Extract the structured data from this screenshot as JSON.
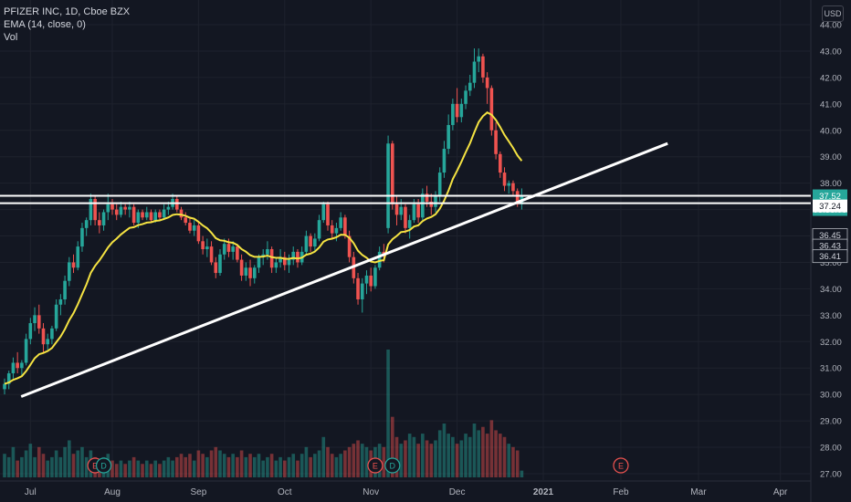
{
  "header": {
    "title": "PFIZER INC, 1D, Cboe BZX",
    "indicator": "EMA (14, close, 0)",
    "volume_label": "Vol",
    "currency": "USD"
  },
  "colors": {
    "background": "#131722",
    "up": "#26a69a",
    "down": "#ef5350",
    "ema": "#f5e342",
    "lines": "#ffffff",
    "axis_text": "#b2b5be",
    "earnings": "#ef5350",
    "dividend": "#26a69a"
  },
  "chart_data": {
    "type": "candlestick",
    "title": "PFIZER INC, 1D, Cboe BZX",
    "y_axis": {
      "unit": "USD",
      "range": [
        26.8,
        44.6
      ],
      "ticks": [
        "27.00",
        "28.00",
        "29.00",
        "30.00",
        "31.00",
        "32.00",
        "33.00",
        "34.00",
        "35.00",
        "36.00",
        "37.00",
        "38.00",
        "39.00",
        "40.00",
        "41.00",
        "42.00",
        "43.00",
        "44.00"
      ]
    },
    "x_axis": {
      "ticks": [
        "Jul",
        "Aug",
        "Sep",
        "Oct",
        "Nov",
        "Dec",
        "2021",
        "Feb",
        "Mar",
        "Apr"
      ]
    },
    "price_labels": [
      {
        "value": 37.52,
        "text": "37.52",
        "style": "current"
      },
      {
        "value": null,
        "text": "05:38:09",
        "style": "countdown"
      },
      {
        "value": 37.24,
        "text": "37.24",
        "style": "line"
      },
      {
        "value": 36.45,
        "text": "36.45",
        "style": "plain"
      },
      {
        "value": 36.43,
        "text": "36.43",
        "style": "plain"
      },
      {
        "value": 36.41,
        "text": "36.41",
        "style": "plain"
      }
    ],
    "horizontal_lines": [
      37.52,
      37.24
    ],
    "trendline": {
      "start": {
        "date": "2020-06-28",
        "price": 29.92
      },
      "end": {
        "date": "2021-01-24",
        "price": 39.5
      }
    },
    "ohlc": [
      [
        30.2,
        30.6,
        30.0,
        30.4
      ],
      [
        30.4,
        30.9,
        30.2,
        30.8
      ],
      [
        30.8,
        31.4,
        30.6,
        31.2
      ],
      [
        31.2,
        31.6,
        30.8,
        31.0
      ],
      [
        31.0,
        31.3,
        30.7,
        31.2
      ],
      [
        31.2,
        32.3,
        31.1,
        32.1
      ],
      [
        32.1,
        32.9,
        31.9,
        32.7
      ],
      [
        32.7,
        33.3,
        32.4,
        33.0
      ],
      [
        33.0,
        33.4,
        32.3,
        32.5
      ],
      [
        32.5,
        32.7,
        31.6,
        31.9
      ],
      [
        31.9,
        32.3,
        31.7,
        32.1
      ],
      [
        32.1,
        32.6,
        31.9,
        32.5
      ],
      [
        32.5,
        33.6,
        32.4,
        33.4
      ],
      [
        33.4,
        33.8,
        33.0,
        33.6
      ],
      [
        33.6,
        34.5,
        33.4,
        34.3
      ],
      [
        34.3,
        35.2,
        34.1,
        35.0
      ],
      [
        35.0,
        35.3,
        34.6,
        34.8
      ],
      [
        34.8,
        35.8,
        34.7,
        35.6
      ],
      [
        35.6,
        36.5,
        35.4,
        36.3
      ],
      [
        36.3,
        36.7,
        36.0,
        36.6
      ],
      [
        36.6,
        37.6,
        36.4,
        37.4
      ],
      [
        37.4,
        37.5,
        36.4,
        36.6
      ],
      [
        36.6,
        36.9,
        36.1,
        36.4
      ],
      [
        36.4,
        37.0,
        36.2,
        36.9
      ],
      [
        36.9,
        37.6,
        36.6,
        37.2
      ],
      [
        37.2,
        37.4,
        36.8,
        37.0
      ],
      [
        37.0,
        37.2,
        36.6,
        36.8
      ],
      [
        36.8,
        37.3,
        36.7,
        37.1
      ],
      [
        37.1,
        37.2,
        36.8,
        37.0
      ],
      [
        37.0,
        37.3,
        36.7,
        37.1
      ],
      [
        37.1,
        37.2,
        36.4,
        36.5
      ],
      [
        36.5,
        37.0,
        36.3,
        36.9
      ],
      [
        36.9,
        37.0,
        36.6,
        36.7
      ],
      [
        36.7,
        37.1,
        36.6,
        36.9
      ],
      [
        36.9,
        37.0,
        36.5,
        36.6
      ],
      [
        36.6,
        37.0,
        36.5,
        36.9
      ],
      [
        36.9,
        37.0,
        36.6,
        36.7
      ],
      [
        36.7,
        37.2,
        36.6,
        37.0
      ],
      [
        37.0,
        37.3,
        36.8,
        37.1
      ],
      [
        37.1,
        37.6,
        37.0,
        37.4
      ],
      [
        37.4,
        37.5,
        36.9,
        37.0
      ],
      [
        37.0,
        37.1,
        36.6,
        36.7
      ],
      [
        36.7,
        36.9,
        36.4,
        36.5
      ],
      [
        36.5,
        36.7,
        36.1,
        36.2
      ],
      [
        36.2,
        36.6,
        36.0,
        36.4
      ],
      [
        36.4,
        36.5,
        35.7,
        35.8
      ],
      [
        35.8,
        36.0,
        35.3,
        35.5
      ],
      [
        35.5,
        35.9,
        35.2,
        35.6
      ],
      [
        35.6,
        35.8,
        34.9,
        35.0
      ],
      [
        35.0,
        35.2,
        34.4,
        34.6
      ],
      [
        34.6,
        35.5,
        34.5,
        35.3
      ],
      [
        35.3,
        35.9,
        35.1,
        35.7
      ],
      [
        35.7,
        35.9,
        35.2,
        35.4
      ],
      [
        35.4,
        35.8,
        35.1,
        35.6
      ],
      [
        35.6,
        35.7,
        35.0,
        35.1
      ],
      [
        35.1,
        35.3,
        34.3,
        34.5
      ],
      [
        34.5,
        35.0,
        34.3,
        34.8
      ],
      [
        34.8,
        35.1,
        34.1,
        34.4
      ],
      [
        34.4,
        34.9,
        34.2,
        34.8
      ],
      [
        34.8,
        35.3,
        34.6,
        35.2
      ],
      [
        35.2,
        35.5,
        34.9,
        35.3
      ],
      [
        35.3,
        35.8,
        35.1,
        35.5
      ],
      [
        35.5,
        35.6,
        34.6,
        34.8
      ],
      [
        34.8,
        35.2,
        34.6,
        35.0
      ],
      [
        35.0,
        35.5,
        34.8,
        35.2
      ],
      [
        35.2,
        35.4,
        34.7,
        34.9
      ],
      [
        34.9,
        35.3,
        34.6,
        35.1
      ],
      [
        35.1,
        35.6,
        34.9,
        35.4
      ],
      [
        35.4,
        35.5,
        34.8,
        35.0
      ],
      [
        35.0,
        35.6,
        34.9,
        35.4
      ],
      [
        35.4,
        36.2,
        35.3,
        36.0
      ],
      [
        36.0,
        36.1,
        35.4,
        35.6
      ],
      [
        35.6,
        36.1,
        35.4,
        35.9
      ],
      [
        35.9,
        36.8,
        35.8,
        36.6
      ],
      [
        36.6,
        37.3,
        36.5,
        37.2
      ],
      [
        37.2,
        37.3,
        36.2,
        36.4
      ],
      [
        36.4,
        36.6,
        35.9,
        36.1
      ],
      [
        36.1,
        36.5,
        35.8,
        36.3
      ],
      [
        36.3,
        36.9,
        36.2,
        36.7
      ],
      [
        36.7,
        36.8,
        35.9,
        36.0
      ],
      [
        36.0,
        36.2,
        35.0,
        35.2
      ],
      [
        35.2,
        35.4,
        34.2,
        34.4
      ],
      [
        34.4,
        34.6,
        33.4,
        33.6
      ],
      [
        33.6,
        34.4,
        33.1,
        34.2
      ],
      [
        34.2,
        34.7,
        33.8,
        34.5
      ],
      [
        34.5,
        34.8,
        33.9,
        34.1
      ],
      [
        34.1,
        34.9,
        34.0,
        34.8
      ],
      [
        34.8,
        35.6,
        34.7,
        35.4
      ],
      [
        35.4,
        35.7,
        35.0,
        35.3
      ],
      [
        36.3,
        39.8,
        36.1,
        39.5
      ],
      [
        39.5,
        39.6,
        37.0,
        37.2
      ],
      [
        37.2,
        37.5,
        36.4,
        36.8
      ],
      [
        36.8,
        37.4,
        36.6,
        37.1
      ],
      [
        37.1,
        37.2,
        36.1,
        36.3
      ],
      [
        36.3,
        36.8,
        35.9,
        36.6
      ],
      [
        36.6,
        37.4,
        36.5,
        37.2
      ],
      [
        37.2,
        37.4,
        36.5,
        36.7
      ],
      [
        36.7,
        37.8,
        36.6,
        37.6
      ],
      [
        37.6,
        37.9,
        37.1,
        37.3
      ],
      [
        37.3,
        37.6,
        36.8,
        37.1
      ],
      [
        37.1,
        37.7,
        36.9,
        37.5
      ],
      [
        37.5,
        38.6,
        37.3,
        38.4
      ],
      [
        38.4,
        39.6,
        38.2,
        39.3
      ],
      [
        39.3,
        40.6,
        39.1,
        40.2
      ],
      [
        40.2,
        41.2,
        40.0,
        41.0
      ],
      [
        41.0,
        41.6,
        40.3,
        40.5
      ],
      [
        40.5,
        41.2,
        40.3,
        41.0
      ],
      [
        41.0,
        41.7,
        40.8,
        41.5
      ],
      [
        41.5,
        42.1,
        41.3,
        41.8
      ],
      [
        41.8,
        43.1,
        41.6,
        42.6
      ],
      [
        42.6,
        43.1,
        42.2,
        42.8
      ],
      [
        42.8,
        42.9,
        41.8,
        42.0
      ],
      [
        42.0,
        42.2,
        41.0,
        41.6
      ],
      [
        41.6,
        41.7,
        39.8,
        40.0
      ],
      [
        40.0,
        40.3,
        38.9,
        39.1
      ],
      [
        39.1,
        39.2,
        38.2,
        38.4
      ],
      [
        38.4,
        38.6,
        37.7,
        37.9
      ],
      [
        37.9,
        38.1,
        37.6,
        38.0
      ],
      [
        38.0,
        38.1,
        37.5,
        37.7
      ],
      [
        37.7,
        37.8,
        37.1,
        37.2
      ],
      [
        37.2,
        37.8,
        37.0,
        37.52
      ]
    ],
    "volume": [
      0.7,
      0.6,
      0.9,
      0.5,
      0.6,
      0.8,
      1.0,
      0.6,
      0.9,
      0.7,
      0.5,
      0.6,
      0.8,
      0.6,
      0.9,
      1.1,
      0.7,
      0.8,
      0.9,
      0.6,
      0.8,
      0.6,
      0.5,
      0.6,
      0.7,
      0.5,
      0.4,
      0.5,
      0.4,
      0.5,
      0.6,
      0.5,
      0.4,
      0.5,
      0.4,
      0.5,
      0.4,
      0.5,
      0.6,
      0.5,
      0.6,
      0.7,
      0.6,
      0.7,
      0.5,
      0.8,
      0.7,
      0.6,
      0.8,
      0.9,
      0.8,
      0.7,
      0.6,
      0.7,
      0.6,
      0.8,
      0.6,
      0.7,
      0.6,
      0.7,
      0.5,
      0.6,
      0.7,
      0.5,
      0.6,
      0.5,
      0.6,
      0.7,
      0.5,
      0.7,
      0.9,
      0.6,
      0.7,
      0.8,
      1.2,
      0.9,
      0.7,
      0.6,
      0.7,
      0.8,
      0.9,
      1.0,
      1.1,
      1.0,
      0.9,
      0.8,
      0.9,
      1.0,
      0.9,
      3.8,
      1.8,
      1.2,
      1.0,
      1.1,
      1.3,
      1.2,
      1.0,
      1.3,
      1.1,
      1.0,
      1.1,
      1.4,
      1.6,
      1.3,
      1.2,
      1.0,
      1.1,
      1.3,
      1.2,
      1.6,
      1.4,
      1.5,
      1.3,
      1.7,
      1.4,
      1.3,
      1.2,
      1.0,
      0.9,
      0.8,
      0.2
    ],
    "ema_length": 14,
    "events": [
      {
        "type": "earnings",
        "label": "E",
        "index": 21
      },
      {
        "type": "dividend",
        "label": "D",
        "index": 23
      },
      {
        "type": "earnings",
        "label": "E",
        "index": 86
      },
      {
        "type": "dividend",
        "label": "D",
        "index": 90
      },
      {
        "type": "earnings",
        "label": "E",
        "future": "Feb"
      }
    ]
  }
}
